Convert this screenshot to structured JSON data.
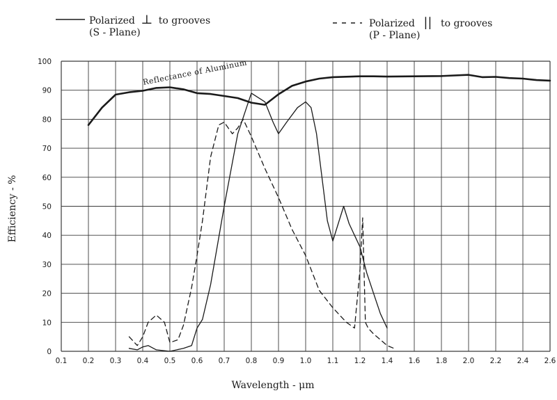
{
  "legend": {
    "solid_line_1": "Polarized",
    "solid_symbol": "⊥",
    "solid_line_1b": "to grooves",
    "solid_line_2": "(S  -  Plane)",
    "dashed_line_1": "Polarized",
    "dashed_symbol": "||",
    "dashed_line_1b": "to grooves",
    "dashed_line_2": "(P  -  Plane)"
  },
  "chart_data": {
    "type": "line",
    "xlabel": "Wavelength  -  μm",
    "ylabel": "Efficiency  -  %",
    "xlim": [
      0.1,
      2.6
    ],
    "ylim": [
      0,
      100
    ],
    "x_ticks": [
      {
        "v": 0.1,
        "label": "0.1"
      },
      {
        "v": 0.2,
        "label": "0.2"
      },
      {
        "v": 0.3,
        "label": "0.3"
      },
      {
        "v": 0.4,
        "label": "0.4"
      },
      {
        "v": 0.5,
        "label": "0.5"
      },
      {
        "v": 0.6,
        "label": "0.6"
      },
      {
        "v": 0.7,
        "label": "0.7"
      },
      {
        "v": 0.8,
        "label": "0.8"
      },
      {
        "v": 0.9,
        "label": "0.9"
      },
      {
        "v": 1.0,
        "label": "1.0"
      },
      {
        "v": 1.1,
        "label": "1.1"
      },
      {
        "v": 1.2,
        "label": "1.2"
      },
      {
        "v": 1.4,
        "label": "1.4"
      },
      {
        "v": 1.6,
        "label": "1.6"
      },
      {
        "v": 1.8,
        "label": "1.8"
      },
      {
        "v": 2.0,
        "label": "2.0"
      },
      {
        "v": 2.2,
        "label": "2.2"
      },
      {
        "v": 2.4,
        "label": "2.4"
      },
      {
        "v": 2.6,
        "label": "2.6"
      }
    ],
    "y_ticks": [
      0,
      10,
      20,
      30,
      40,
      50,
      60,
      70,
      80,
      90,
      100
    ],
    "grid": true,
    "annotation": "Reflectance of Aluminum",
    "series": [
      {
        "key": "reflectance",
        "style": "bold",
        "x": [
          0.2,
          0.25,
          0.3,
          0.35,
          0.4,
          0.45,
          0.5,
          0.55,
          0.6,
          0.65,
          0.7,
          0.75,
          0.8,
          0.85,
          0.9,
          0.95,
          1.0,
          1.05,
          1.1,
          1.2,
          1.3,
          1.4,
          1.6,
          1.8,
          2.0,
          2.1,
          2.2,
          2.3,
          2.4,
          2.5,
          2.6
        ],
        "y": [
          78,
          84,
          88.5,
          89.3,
          89.8,
          90.8,
          91,
          90.3,
          89,
          88.7,
          88,
          87.3,
          85.7,
          85,
          88.6,
          91.5,
          93,
          94,
          94.5,
          94.8,
          94.8,
          94.7,
          94.8,
          94.9,
          95.3,
          94.5,
          94.6,
          94.2,
          94,
          93.5,
          93.3
        ]
      },
      {
        "key": "s_plane",
        "style": "solid",
        "x": [
          0.35,
          0.38,
          0.4,
          0.42,
          0.45,
          0.5,
          0.55,
          0.58,
          0.6,
          0.62,
          0.65,
          0.7,
          0.75,
          0.8,
          0.85,
          0.88,
          0.9,
          0.93,
          0.97,
          1.0,
          1.02,
          1.04,
          1.06,
          1.08,
          1.1,
          1.12,
          1.14,
          1.16,
          1.18,
          1.2,
          1.25,
          1.3,
          1.35,
          1.4
        ],
        "y": [
          1,
          0.5,
          1.5,
          2,
          0.5,
          0,
          1,
          2,
          8,
          11,
          23,
          50,
          75,
          89,
          86,
          79,
          75,
          79,
          84,
          86,
          84,
          75,
          60,
          45,
          38,
          44,
          50,
          44,
          40,
          36,
          27,
          20,
          13,
          8
        ]
      },
      {
        "key": "p_plane",
        "style": "dashed",
        "x": [
          0.35,
          0.38,
          0.4,
          0.42,
          0.45,
          0.48,
          0.5,
          0.53,
          0.55,
          0.58,
          0.6,
          0.62,
          0.65,
          0.68,
          0.7,
          0.73,
          0.75,
          0.77,
          0.8,
          0.85,
          0.9,
          0.95,
          1.0,
          1.05,
          1.1,
          1.15,
          1.18,
          1.2,
          1.22,
          1.24,
          1.26,
          1.3,
          1.35,
          1.4,
          1.45
        ],
        "y": [
          5,
          2,
          5,
          10,
          12.5,
          10,
          3,
          4,
          9,
          22,
          33,
          45,
          67,
          78,
          79,
          75,
          77,
          80,
          74,
          63,
          53,
          42,
          33,
          21,
          15,
          10,
          8,
          28,
          46,
          10,
          8,
          6,
          4,
          2,
          1
        ]
      }
    ]
  }
}
